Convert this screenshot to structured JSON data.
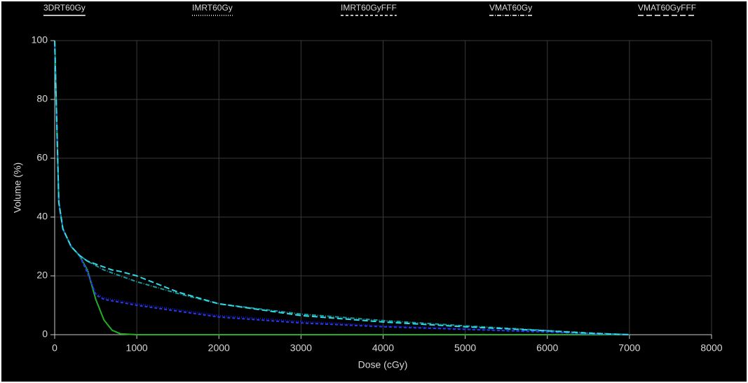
{
  "chart_data": {
    "type": "line",
    "x_label": "Dose (cGy)",
    "y_label": "Volume (%)",
    "x": [
      0,
      50,
      100,
      200,
      300,
      400,
      500,
      600,
      700,
      800,
      1000,
      1500,
      2000,
      3000,
      4000,
      5000,
      6000,
      6500,
      7000
    ],
    "series": [
      {
        "name": "3DRT60Gy",
        "color": "#22b022",
        "dash": "solid",
        "values": [
          100,
          45,
          36,
          30,
          27,
          22,
          12,
          5,
          1.5,
          0.3,
          0,
          0,
          0,
          0,
          0,
          0,
          0,
          0,
          0
        ]
      },
      {
        "name": "IMRT60Gy",
        "color": "#1a1ad8",
        "dash": "dotted",
        "values": [
          100,
          45,
          36,
          30,
          27,
          22,
          14,
          12.5,
          12,
          11.5,
          10.5,
          8.5,
          6.5,
          4.5,
          3,
          2,
          1,
          0.3,
          0
        ]
      },
      {
        "name": "IMRT60GyFFF",
        "color": "#2a3ae8",
        "dash": "dashed",
        "values": [
          100,
          45,
          36,
          30,
          27,
          21,
          13.5,
          12,
          11.5,
          11,
          10,
          8,
          6,
          4,
          2.7,
          1.8,
          0.9,
          0.3,
          0
        ]
      },
      {
        "name": "VMAT60Gy",
        "color": "#1a9a9a",
        "dash": "dashdot",
        "values": [
          100,
          45,
          36,
          30,
          27,
          25,
          23.5,
          22,
          21,
          20,
          18,
          14,
          10.5,
          7,
          4.8,
          3,
          1.4,
          0.6,
          0
        ]
      },
      {
        "name": "VMAT60GyFFF",
        "color": "#30d8e8",
        "dash": "longdash",
        "values": [
          100,
          45,
          36,
          30,
          27,
          25,
          24,
          23,
          22,
          21.5,
          20,
          14.5,
          10.5,
          6.5,
          4.3,
          2.7,
          1.3,
          0.5,
          0
        ]
      }
    ],
    "xlim": [
      0,
      8000
    ],
    "xticks": [
      0,
      1000,
      2000,
      3000,
      4000,
      5000,
      6000,
      7000,
      8000
    ],
    "ylim": [
      0,
      100
    ],
    "yticks": [
      0,
      20,
      40,
      60,
      80,
      100
    ],
    "grid": true
  }
}
